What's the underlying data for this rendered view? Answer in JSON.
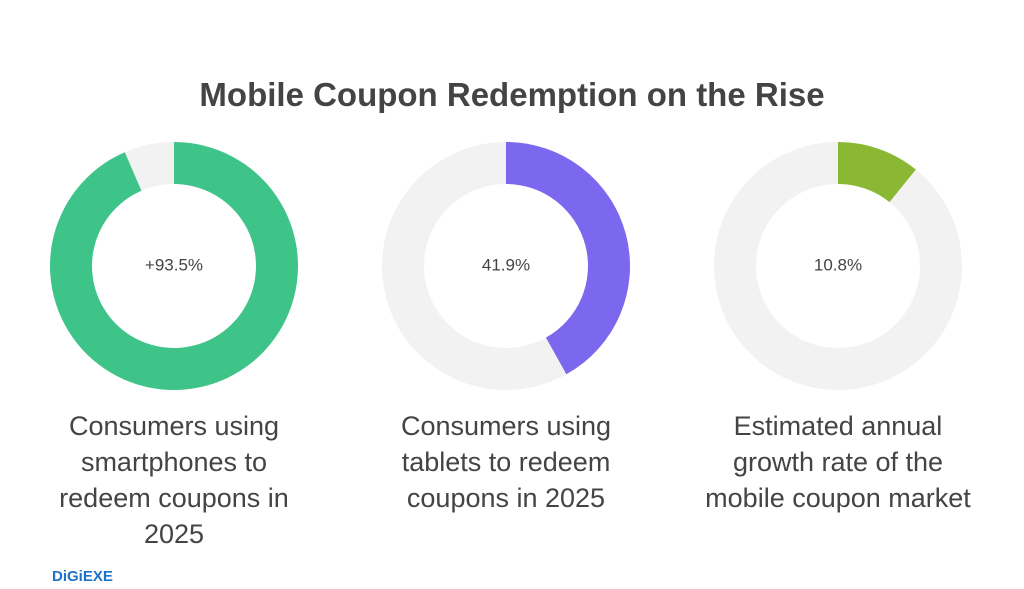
{
  "title": "Mobile Coupon Redemption on the Rise",
  "logo": "DiGiEXE",
  "chart_data": [
    {
      "type": "donut",
      "values": [
        93.5
      ],
      "value_labels": [
        "+93.5%"
      ],
      "color": "#3ec488",
      "caption": "Consumers using smartphones to redeem coupons in 2025"
    },
    {
      "type": "donut",
      "values": [
        41.9
      ],
      "value_labels": [
        "41.9%"
      ],
      "color": "#7b68ee",
      "caption": "Consumers using tablets to redeem coupons in 2025"
    },
    {
      "type": "donut",
      "values": [
        10.8
      ],
      "value_labels": [
        "10.8%"
      ],
      "color": "#8ab833",
      "caption": "Estimated annual growth rate of the mobile coupon market"
    }
  ]
}
